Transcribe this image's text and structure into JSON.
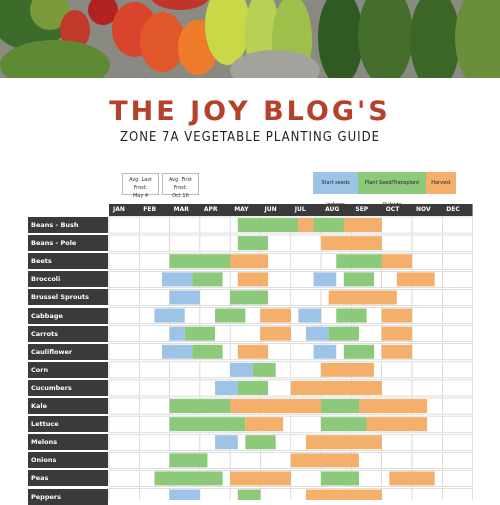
{
  "title": "THE JOY BLOG'S",
  "subtitle": "ZONE 7A VEGETABLE PLANTING GUIDE",
  "frost": {
    "last_label": "Avg. Last Frost:",
    "last_date": "May 4",
    "first_label": "Avg. First Frost:",
    "first_date": "Oct 16"
  },
  "legend": [
    {
      "label": "Start seeds indoors",
      "color": "#9dc3e6"
    },
    {
      "label": "Plant Seed/Transplant Outside",
      "color": "#8cc97a"
    },
    {
      "label": "Harvest",
      "color": "#f4b06a"
    }
  ],
  "colors": {
    "indoor": "#9dc3e6",
    "outdoor": "#8cc97a",
    "harvest": "#f4b06a",
    "header": "#3a3a3a",
    "title": "#b5412b"
  },
  "months": [
    "JAN",
    "FEB",
    "MAR",
    "APR",
    "MAY",
    "JUN",
    "JUL",
    "AUG",
    "SEP",
    "OCT",
    "NOV",
    "DEC"
  ],
  "crops": [
    {
      "name": "Beans - Bush",
      "bars": [
        {
          "t": "outdoor",
          "s": 4.25,
          "e": 5.0
        },
        {
          "t": "outdoor",
          "s": 5.0,
          "e": 6.25
        },
        {
          "t": "harvest",
          "s": 6.25,
          "e": 9.0
        },
        {
          "t": "outdoor",
          "s": 6.75,
          "e": 7.75
        }
      ]
    },
    {
      "name": "Beans - Pole",
      "bars": [
        {
          "t": "outdoor",
          "s": 4.25,
          "e": 5.25
        },
        {
          "t": "harvest",
          "s": 7.0,
          "e": 9.0
        }
      ]
    },
    {
      "name": "Beets",
      "bars": [
        {
          "t": "outdoor",
          "s": 2.0,
          "e": 4.0
        },
        {
          "t": "harvest",
          "s": 4.0,
          "e": 5.25
        },
        {
          "t": "outdoor",
          "s": 7.5,
          "e": 9.0
        },
        {
          "t": "harvest",
          "s": 9.0,
          "e": 10.0
        }
      ]
    },
    {
      "name": "Broccoli",
      "bars": [
        {
          "t": "indoor",
          "s": 1.75,
          "e": 2.75
        },
        {
          "t": "outdoor",
          "s": 2.75,
          "e": 3.75
        },
        {
          "t": "harvest",
          "s": 4.25,
          "e": 5.25
        },
        {
          "t": "indoor",
          "s": 6.75,
          "e": 7.5
        },
        {
          "t": "outdoor",
          "s": 7.75,
          "e": 8.75
        },
        {
          "t": "harvest",
          "s": 9.5,
          "e": 10.75
        }
      ]
    },
    {
      "name": "Brussel Sprouts",
      "bars": [
        {
          "t": "indoor",
          "s": 2.0,
          "e": 3.0
        },
        {
          "t": "outdoor",
          "s": 4.0,
          "e": 5.25
        },
        {
          "t": "harvest",
          "s": 7.25,
          "e": 9.5
        }
      ]
    },
    {
      "name": "Cabbage",
      "bars": [
        {
          "t": "indoor",
          "s": 1.5,
          "e": 2.5
        },
        {
          "t": "outdoor",
          "s": 3.5,
          "e": 4.5
        },
        {
          "t": "harvest",
          "s": 5.0,
          "e": 6.0
        },
        {
          "t": "indoor",
          "s": 6.25,
          "e": 7.0
        },
        {
          "t": "outdoor",
          "s": 7.5,
          "e": 8.5
        },
        {
          "t": "harvest",
          "s": 9.0,
          "e": 10.0
        }
      ]
    },
    {
      "name": "Carrots",
      "bars": [
        {
          "t": "indoor",
          "s": 2.0,
          "e": 2.5
        },
        {
          "t": "outdoor",
          "s": 2.5,
          "e": 3.5
        },
        {
          "t": "harvest",
          "s": 5.0,
          "e": 6.0
        },
        {
          "t": "indoor",
          "s": 6.5,
          "e": 7.25
        },
        {
          "t": "outdoor",
          "s": 7.25,
          "e": 8.25
        },
        {
          "t": "harvest",
          "s": 9.0,
          "e": 10.0
        }
      ]
    },
    {
      "name": "Cauliflower",
      "bars": [
        {
          "t": "indoor",
          "s": 1.75,
          "e": 2.75
        },
        {
          "t": "outdoor",
          "s": 2.75,
          "e": 3.75
        },
        {
          "t": "harvest",
          "s": 4.25,
          "e": 5.25
        },
        {
          "t": "indoor",
          "s": 6.75,
          "e": 7.5
        },
        {
          "t": "outdoor",
          "s": 7.75,
          "e": 8.75
        },
        {
          "t": "harvest",
          "s": 9.0,
          "e": 10.0
        }
      ]
    },
    {
      "name": "Corn",
      "bars": [
        {
          "t": "indoor",
          "s": 4.0,
          "e": 4.75
        },
        {
          "t": "outdoor",
          "s": 4.75,
          "e": 5.5
        },
        {
          "t": "harvest",
          "s": 7.0,
          "e": 8.75
        }
      ]
    },
    {
      "name": "Cucumbers",
      "bars": [
        {
          "t": "indoor",
          "s": 3.5,
          "e": 4.25
        },
        {
          "t": "outdoor",
          "s": 4.25,
          "e": 5.25
        },
        {
          "t": "harvest",
          "s": 6.0,
          "e": 9.0
        }
      ]
    },
    {
      "name": "Kale",
      "bars": [
        {
          "t": "outdoor",
          "s": 2.0,
          "e": 4.0
        },
        {
          "t": "harvest",
          "s": 4.0,
          "e": 10.5
        },
        {
          "t": "outdoor",
          "s": 7.0,
          "e": 8.25
        }
      ]
    },
    {
      "name": "Lettuce",
      "bars": [
        {
          "t": "outdoor",
          "s": 2.0,
          "e": 4.5
        },
        {
          "t": "harvest",
          "s": 4.5,
          "e": 5.75
        },
        {
          "t": "outdoor",
          "s": 7.0,
          "e": 8.5
        },
        {
          "t": "harvest",
          "s": 8.5,
          "e": 10.5
        }
      ]
    },
    {
      "name": "Melons",
      "bars": [
        {
          "t": "indoor",
          "s": 3.5,
          "e": 4.25
        },
        {
          "t": "outdoor",
          "s": 4.5,
          "e": 5.5
        },
        {
          "t": "harvest",
          "s": 6.5,
          "e": 9.0
        }
      ]
    },
    {
      "name": "Onions",
      "bars": [
        {
          "t": "outdoor",
          "s": 2.0,
          "e": 3.25
        },
        {
          "t": "harvest",
          "s": 6.0,
          "e": 8.25
        }
      ]
    },
    {
      "name": "Peas",
      "bars": [
        {
          "t": "outdoor",
          "s": 1.5,
          "e": 3.75
        },
        {
          "t": "harvest",
          "s": 4.0,
          "e": 6.0
        },
        {
          "t": "outdoor",
          "s": 7.0,
          "e": 8.25
        },
        {
          "t": "harvest",
          "s": 9.25,
          "e": 10.75
        }
      ]
    },
    {
      "name": "Peppers",
      "bars": [
        {
          "t": "indoor",
          "s": 2.0,
          "e": 3.0
        },
        {
          "t": "outdoor",
          "s": 4.25,
          "e": 5.0
        },
        {
          "t": "harvest",
          "s": 6.5,
          "e": 9.0
        }
      ]
    }
  ]
}
